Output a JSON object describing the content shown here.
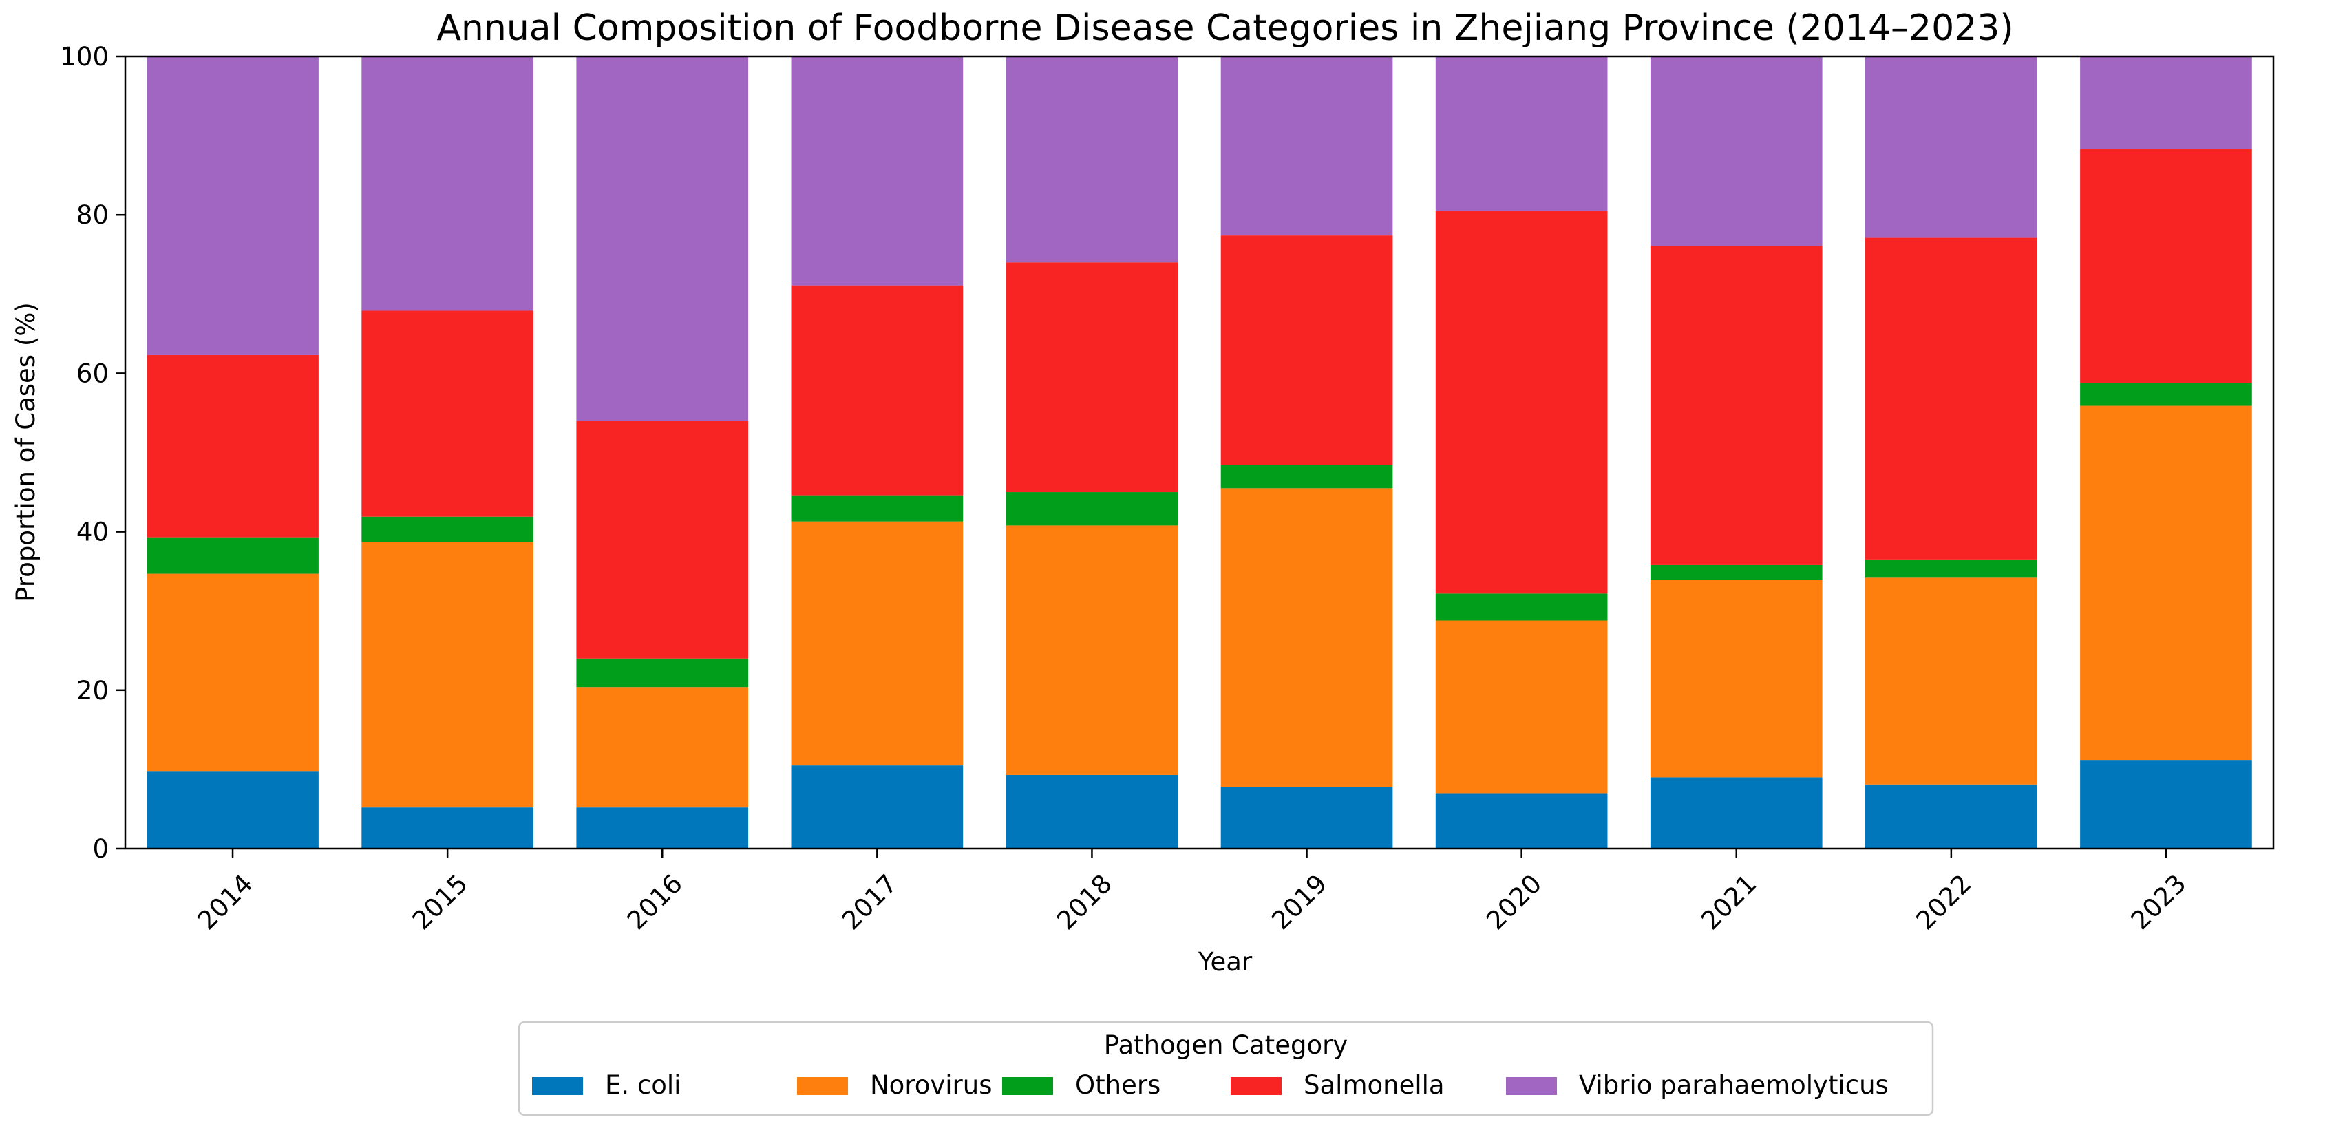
{
  "chart_data": {
    "type": "bar",
    "stacked": true,
    "title": "Annual Composition of Foodborne Disease Categories in Zhejiang Province (2014–2023)",
    "xlabel": "Year",
    "ylabel": "Proportion of Cases (%)",
    "ylim": [
      0,
      100
    ],
    "yticks": [
      0,
      20,
      40,
      60,
      80,
      100
    ],
    "grid": false,
    "categories": [
      "2014",
      "2015",
      "2016",
      "2017",
      "2018",
      "2019",
      "2020",
      "2021",
      "2022",
      "2023"
    ],
    "legend": {
      "title": "Pathogen Category",
      "placement": "bottom-center"
    },
    "series": [
      {
        "name": "E. coli",
        "color": "#0077bb",
        "values": [
          9.8,
          5.2,
          5.2,
          10.5,
          9.3,
          7.8,
          7.0,
          9.0,
          8.1,
          11.2
        ]
      },
      {
        "name": "Norovirus",
        "color": "#ff7f0e",
        "values": [
          24.9,
          33.5,
          15.2,
          30.8,
          31.5,
          37.7,
          21.8,
          24.9,
          26.1,
          44.7
        ]
      },
      {
        "name": "Others",
        "color": "#009e1a",
        "values": [
          4.6,
          3.2,
          3.6,
          3.3,
          4.2,
          2.9,
          3.4,
          1.9,
          2.3,
          2.9
        ]
      },
      {
        "name": "Salmonella",
        "color": "#f82424",
        "values": [
          23.0,
          26.0,
          30.0,
          26.5,
          29.0,
          29.0,
          48.3,
          40.3,
          40.6,
          29.5
        ]
      },
      {
        "name": "Vibrio parahaemolyticus",
        "color": "#a066c2",
        "values": [
          37.7,
          32.1,
          46.0,
          28.9,
          26.0,
          22.6,
          19.5,
          23.9,
          22.9,
          11.7
        ]
      }
    ]
  }
}
